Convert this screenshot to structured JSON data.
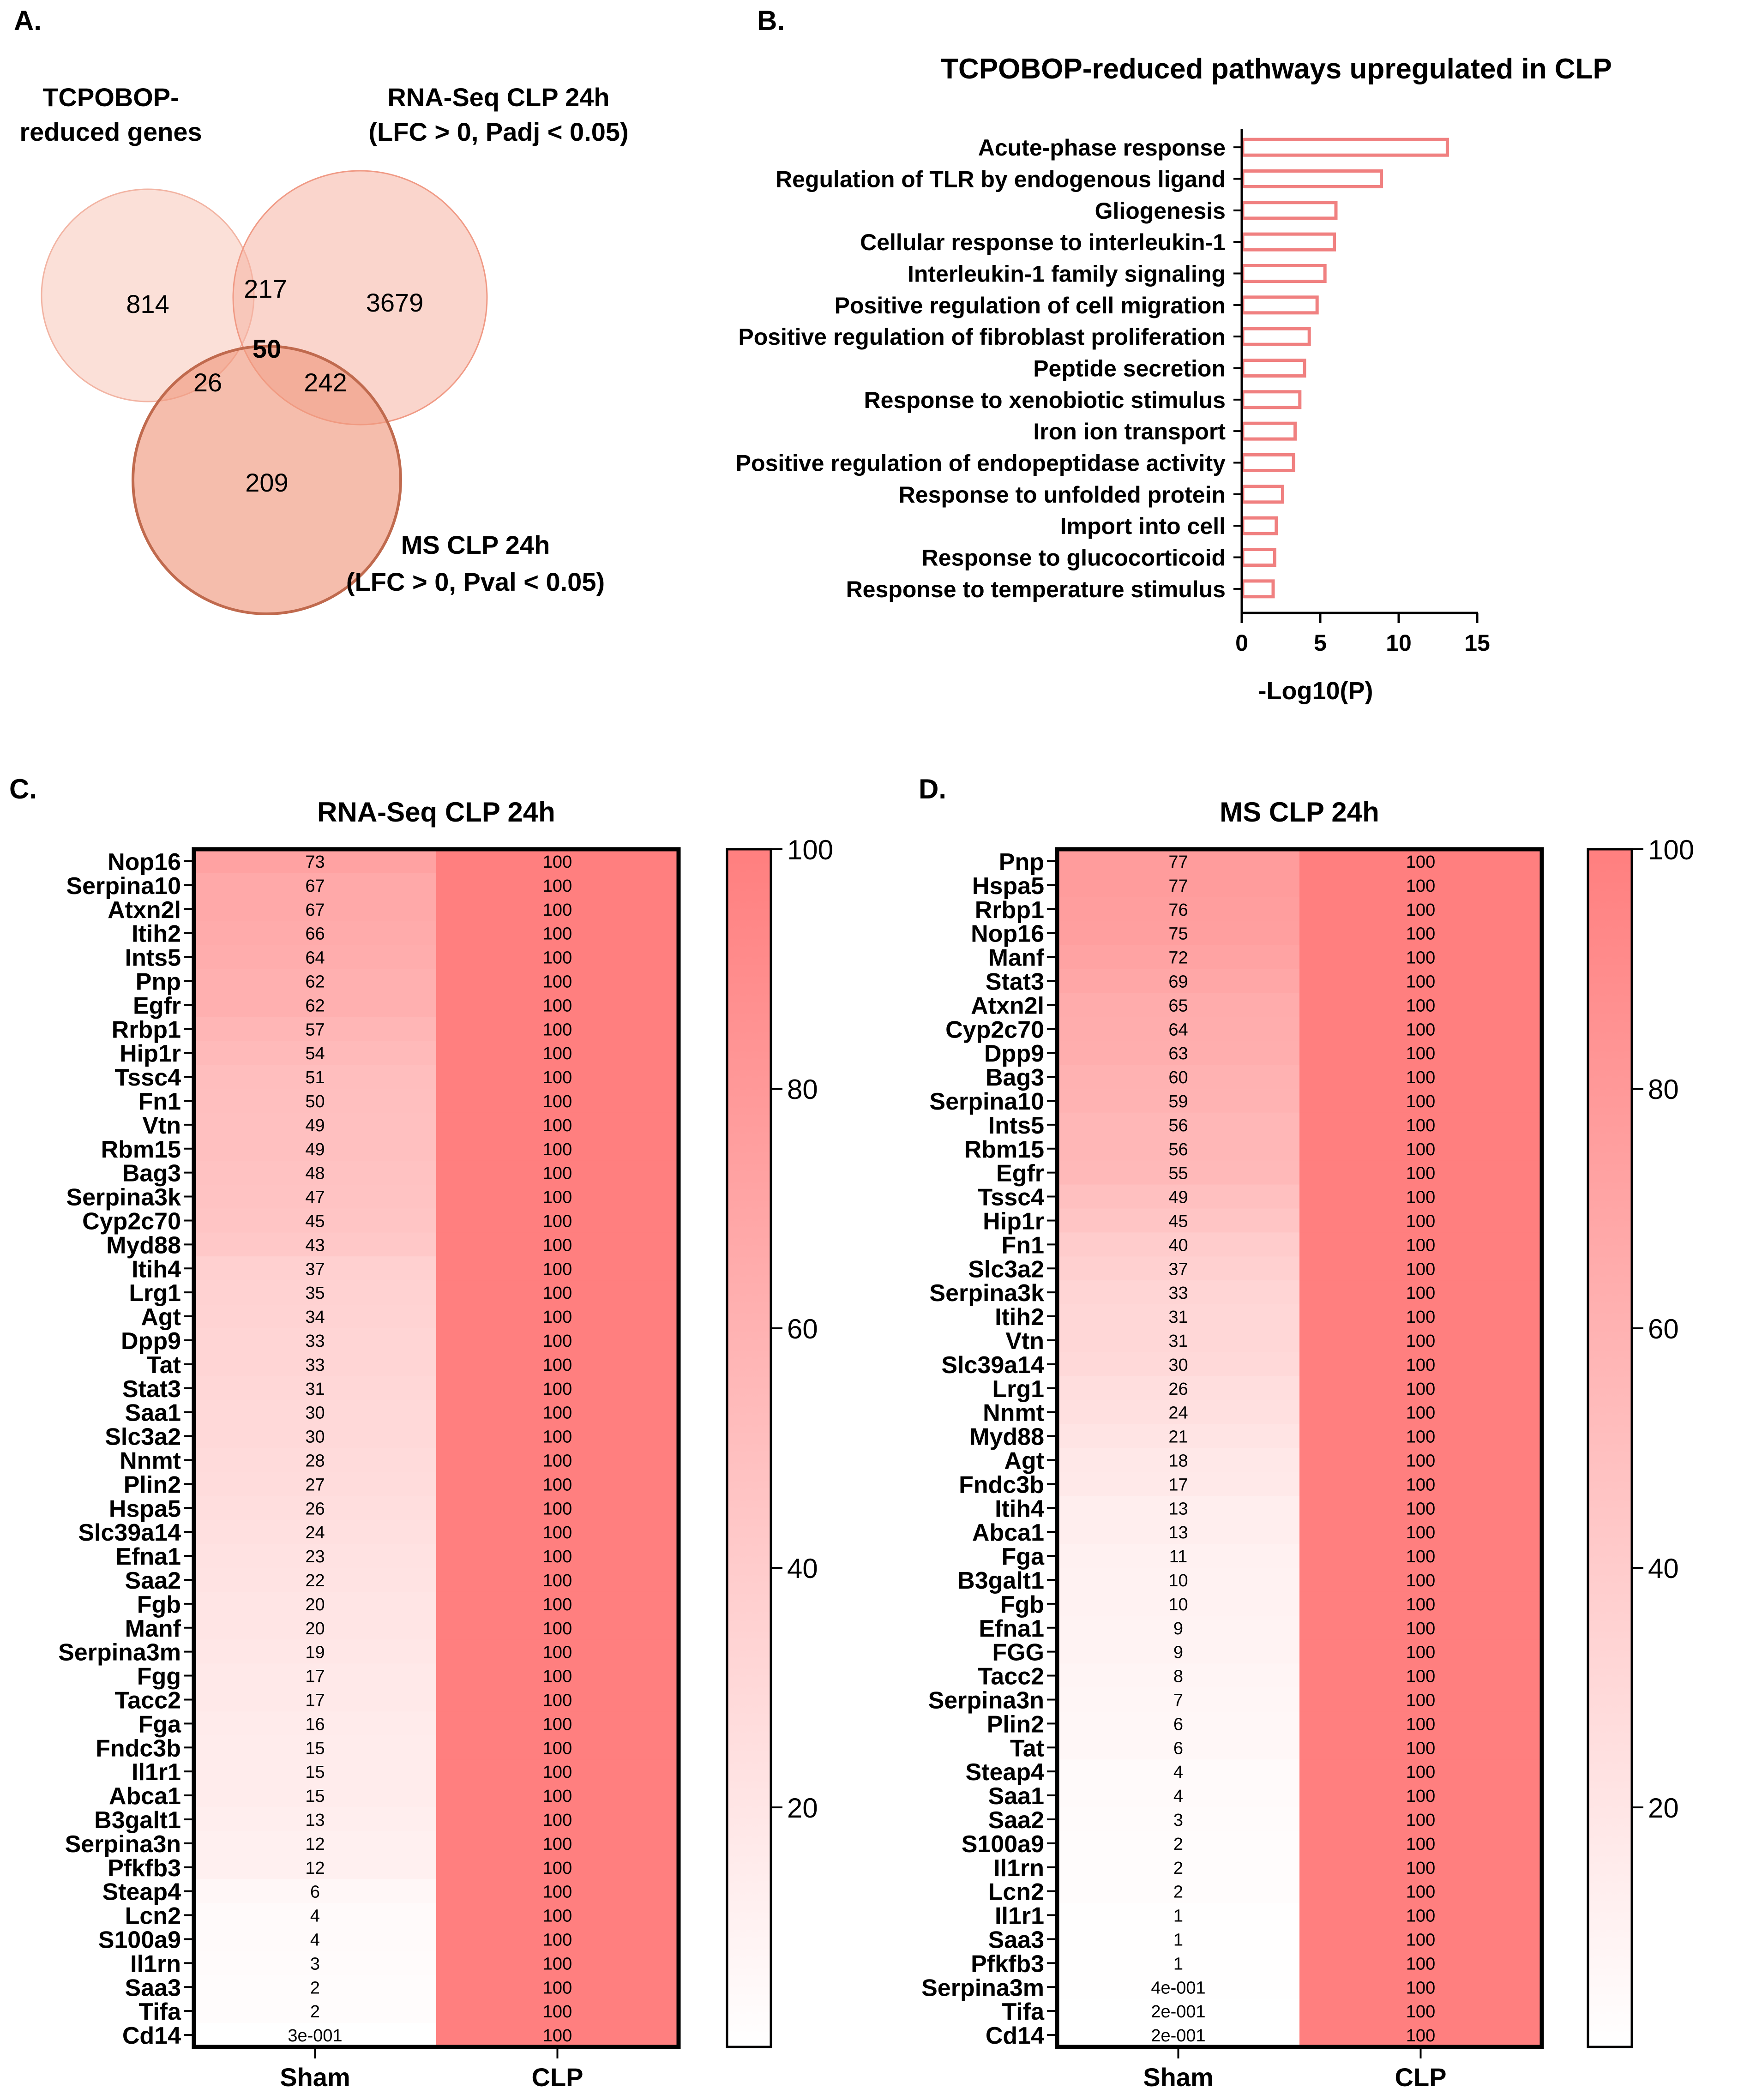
{
  "panels": {
    "a": "A.",
    "b": "B.",
    "c": "C.",
    "d": "D."
  },
  "colors": {
    "bar": "#f08080",
    "heat_max": "#ff7f7f",
    "heat_min": "#ffffff",
    "venn_tcpobop": "#f9d3c7",
    "venn_rnaseq": "#f6b3a3",
    "venn_ms": "#f09a80",
    "venn_ms_stroke": "#c06a4e"
  },
  "venn": {
    "labels": {
      "tcpobop": [
        "TCPOBOP-",
        "reduced genes"
      ],
      "rnaseq": [
        "RNA-Seq CLP 24h",
        "(LFC > 0, Padj < 0.05)"
      ],
      "ms": [
        "MS CLP 24h",
        "(LFC > 0, Pval < 0.05)"
      ]
    },
    "counts": {
      "tcpobop_only": "814",
      "rnaseq_only": "3679",
      "ms_only": "209",
      "tcpobop_rnaseq": "217",
      "tcpobop_ms": "26",
      "rnaseq_ms": "242",
      "all": "50"
    }
  },
  "chart_data": [
    {
      "type": "bar",
      "orientation": "horizontal",
      "title": "TCPOBOP-reduced pathways upregulated in CLP",
      "xlabel": "-Log10(P)",
      "ylabel": "",
      "xlim": [
        0,
        15
      ],
      "xticks": [
        0,
        5,
        10,
        15
      ],
      "categories": [
        "Acute-phase response",
        "Regulation of TLR by endogenous ligand",
        "Gliogenesis",
        "Cellular response to interleukin-1",
        "Interleukin-1 family signaling",
        "Positive regulation of cell migration",
        "Positive regulation of fibroblast proliferation",
        "Peptide secretion",
        "Response to xenobiotic stimulus",
        "Iron ion transport",
        "Positive regulation of endopeptidase activity",
        "Response to unfolded protein",
        "Import into cell",
        "Response to glucocorticoid",
        "Response to temperature stimulus"
      ],
      "values": [
        13.1,
        8.9,
        6.0,
        5.9,
        5.3,
        4.8,
        4.3,
        4.0,
        3.7,
        3.4,
        3.3,
        2.6,
        2.2,
        2.1,
        2.0
      ]
    },
    {
      "type": "heatmap",
      "title": "RNA-Seq CLP 24h",
      "columns": [
        "Sham",
        "CLP"
      ],
      "colorbar_range": [
        0,
        100
      ],
      "colorbar_ticks": [
        20,
        40,
        60,
        80,
        100
      ],
      "rows": [
        "Nop16",
        "Serpina10",
        "Atxn2l",
        "Itih2",
        "Ints5",
        "Pnp",
        "Egfr",
        "Rrbp1",
        "Hip1r",
        "Tssc4",
        "Fn1",
        "Vtn",
        "Rbm15",
        "Bag3",
        "Serpina3k",
        "Cyp2c70",
        "Myd88",
        "Itih4",
        "Lrg1",
        "Agt",
        "Dpp9",
        "Tat",
        "Stat3",
        "Saa1",
        "Slc3a2",
        "Nnmt",
        "Plin2",
        "Hspa5",
        "Slc39a14",
        "Efna1",
        "Saa2",
        "Fgb",
        "Manf",
        "Serpina3m",
        "Fgg",
        "Tacc2",
        "Fga",
        "Fndc3b",
        "Il1r1",
        "Abca1",
        "B3galt1",
        "Serpina3n",
        "Pfkfb3",
        "Steap4",
        "Lcn2",
        "S100a9",
        "Il1rn",
        "Saa3",
        "Tifa",
        "Cd14"
      ],
      "sham_values": [
        73,
        67,
        67,
        66,
        64,
        62,
        62,
        57,
        54,
        51,
        50,
        49,
        49,
        48,
        47,
        45,
        43,
        37,
        35,
        34,
        33,
        33,
        31,
        30,
        30,
        28,
        27,
        26,
        24,
        23,
        22,
        20,
        20,
        19,
        17,
        17,
        16,
        15,
        15,
        15,
        13,
        12,
        12,
        6,
        4,
        4,
        3,
        2,
        2,
        0.3
      ],
      "sham_labels": [
        "73",
        "67",
        "67",
        "66",
        "64",
        "62",
        "62",
        "57",
        "54",
        "51",
        "50",
        "49",
        "49",
        "48",
        "47",
        "45",
        "43",
        "37",
        "35",
        "34",
        "33",
        "33",
        "31",
        "30",
        "30",
        "28",
        "27",
        "26",
        "24",
        "23",
        "22",
        "20",
        "20",
        "19",
        "17",
        "17",
        "16",
        "15",
        "15",
        "15",
        "13",
        "12",
        "12",
        "6",
        "4",
        "4",
        "3",
        "2",
        "2",
        "3e-001"
      ],
      "clp_value": 100,
      "clp_label": "100"
    },
    {
      "type": "heatmap",
      "title": "MS CLP 24h",
      "columns": [
        "Sham",
        "CLP"
      ],
      "colorbar_range": [
        0,
        100
      ],
      "colorbar_ticks": [
        20,
        40,
        60,
        80,
        100
      ],
      "rows": [
        "Pnp",
        "Hspa5",
        "Rrbp1",
        "Nop16",
        "Manf",
        "Stat3",
        "Atxn2l",
        "Cyp2c70",
        "Dpp9",
        "Bag3",
        "Serpina10",
        "Ints5",
        "Rbm15",
        "Egfr",
        "Tssc4",
        "Hip1r",
        "Fn1",
        "Slc3a2",
        "Serpina3k",
        "Itih2",
        "Vtn",
        "Slc39a14",
        "Lrg1",
        "Nnmt",
        "Myd88",
        "Agt",
        "Fndc3b",
        "Itih4",
        "Abca1",
        "Fga",
        "B3galt1",
        "Fgb",
        "Efna1",
        "FGG",
        "Tacc2",
        "Serpina3n",
        "Plin2",
        "Tat",
        "Steap4",
        "Saa1",
        "Saa2",
        "S100a9",
        "Il1rn",
        "Lcn2",
        "Il1r1",
        "Saa3",
        "Pfkfb3",
        "Serpina3m",
        "Tifa",
        "Cd14"
      ],
      "sham_values": [
        77,
        77,
        76,
        75,
        72,
        69,
        65,
        64,
        63,
        60,
        59,
        56,
        56,
        55,
        49,
        45,
        40,
        37,
        33,
        31,
        31,
        30,
        26,
        24,
        21,
        18,
        17,
        13,
        13,
        11,
        10,
        10,
        9,
        9,
        8,
        7,
        6,
        6,
        4,
        4,
        3,
        2,
        2,
        2,
        1,
        1,
        1,
        0.4,
        0.2,
        0.2
      ],
      "sham_labels": [
        "77",
        "77",
        "76",
        "75",
        "72",
        "69",
        "65",
        "64",
        "63",
        "60",
        "59",
        "56",
        "56",
        "55",
        "49",
        "45",
        "40",
        "37",
        "33",
        "31",
        "31",
        "30",
        "26",
        "24",
        "21",
        "18",
        "17",
        "13",
        "13",
        "11",
        "10",
        "10",
        "9",
        "9",
        "8",
        "7",
        "6",
        "6",
        "4",
        "4",
        "3",
        "2",
        "2",
        "2",
        "1",
        "1",
        "1",
        "4e-001",
        "2e-001",
        "2e-001"
      ],
      "clp_value": 100,
      "clp_label": "100"
    }
  ]
}
